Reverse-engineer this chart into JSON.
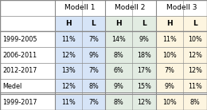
{
  "header1": [
    "",
    "Modell 1",
    "Modell 2",
    "Modell 3"
  ],
  "header2": [
    "",
    "H",
    "L",
    "H",
    "L",
    "H",
    "L"
  ],
  "rows": [
    [
      "1999-2005",
      "11%",
      "7%",
      "14%",
      "9%",
      "11%",
      "10%"
    ],
    [
      "2006-2011",
      "12%",
      "9%",
      "8%",
      "18%",
      "10%",
      "12%"
    ],
    [
      "2012-2017",
      "13%",
      "7%",
      "6%",
      "17%",
      "7%",
      "12%"
    ],
    [
      "Medel",
      "12%",
      "8%",
      "9%",
      "15%",
      "9%",
      "11%"
    ],
    [
      "1999-2017",
      "11%",
      "7%",
      "8%",
      "12%",
      "10%",
      "8%"
    ]
  ],
  "col_colors": {
    "M1H": "#d6e4f7",
    "M1L": "#d6e4f7",
    "M2H": "#e2ece2",
    "M2L": "#e2ece2",
    "M3H": "#fdf5e0",
    "M3L": "#fdf5e0"
  },
  "header_bg": "#ffffff",
  "border_color": "#888888",
  "text_color": "#000000",
  "font_size": 5.8,
  "header_font_size": 6.5
}
